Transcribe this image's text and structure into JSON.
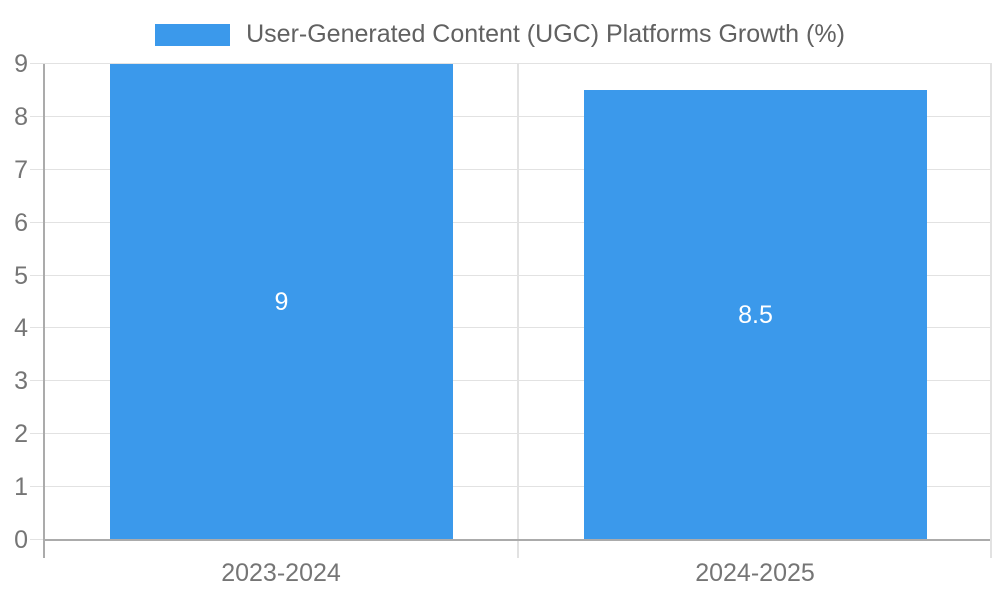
{
  "chart_data": {
    "type": "bar",
    "title": "User-Generated Content (UGC) Platforms Growth (%)",
    "categories": [
      "2023-2024",
      "2024-2025"
    ],
    "values": [
      9,
      8.5
    ],
    "value_labels": [
      "9",
      "8.5"
    ],
    "xlabel": "",
    "ylabel": "",
    "ylim": [
      0,
      9
    ],
    "yticks": [
      0,
      1,
      2,
      3,
      4,
      5,
      6,
      7,
      8,
      9
    ],
    "grid": true,
    "legend_position": "top-center",
    "value_labels_inside_bars": true
  },
  "colors": {
    "bar": "#3b99eb",
    "gridline": "#e2e2e2",
    "axis_line": "#ababab",
    "plot_right_border": "#e2e2e2",
    "tick_label": "#757575",
    "legend_text": "#616161",
    "value_label": "#ffffff",
    "background": "#ffffff"
  }
}
